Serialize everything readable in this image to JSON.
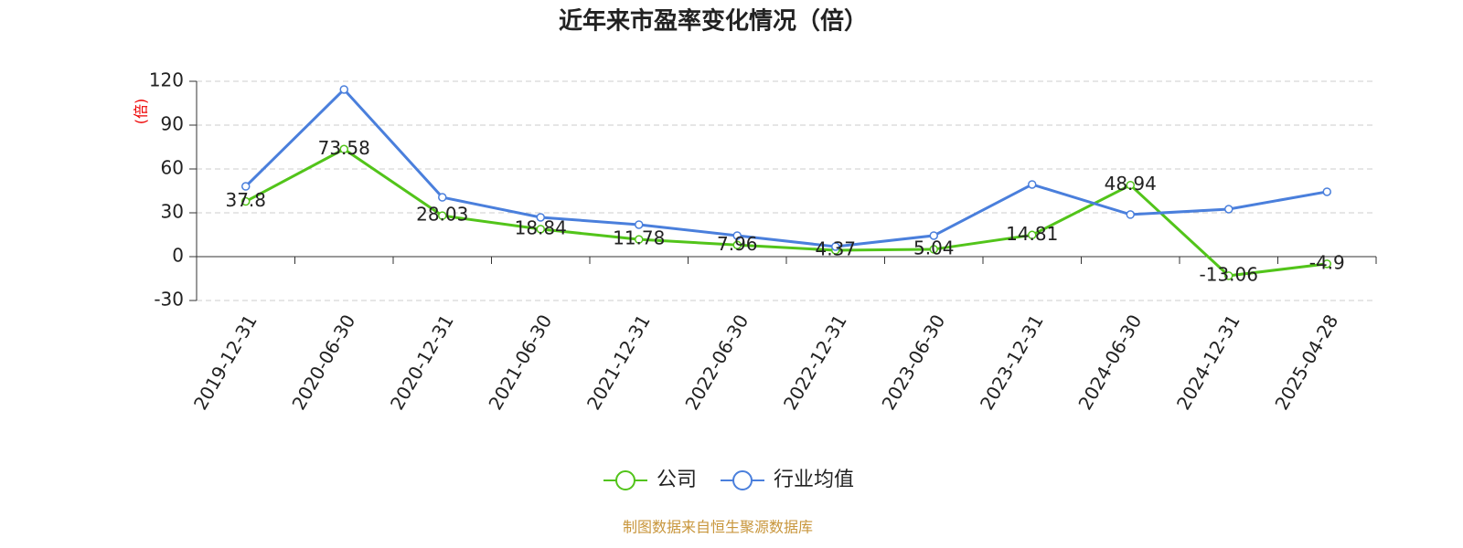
{
  "chart_data": {
    "type": "line",
    "title": "近年来市盈率变化情况（倍）",
    "y_label": "(倍)",
    "categories": [
      "2019-12-31",
      "2020-06-30",
      "2020-12-31",
      "2021-06-30",
      "2021-12-31",
      "2022-06-30",
      "2022-12-31",
      "2023-06-30",
      "2023-12-31",
      "2024-06-30",
      "2024-12-31",
      "2025-04-28"
    ],
    "series": [
      {
        "name": "公司",
        "color": "#52c41a",
        "values": [
          37.8,
          73.58,
          28.03,
          18.84,
          11.78,
          7.96,
          4.37,
          5.04,
          14.81,
          48.94,
          -13.06,
          -4.9
        ]
      },
      {
        "name": "行业均值",
        "color": "#4a7fdc",
        "values": [
          48.1,
          114.4,
          40.6,
          26.9,
          21.9,
          14.4,
          6.9,
          14.4,
          49.4,
          28.8,
          32.5,
          44.4
        ]
      }
    ],
    "ylim": [
      -30,
      120
    ],
    "yticks": [
      -30,
      0,
      30,
      60,
      90,
      120
    ],
    "grid": true,
    "source": "制图数据来自恒生聚源数据库"
  }
}
